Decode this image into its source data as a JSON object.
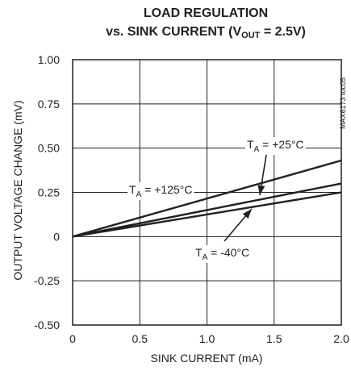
{
  "title": {
    "line1": "LOAD REGULATION",
    "line2_prefix": "vs. SINK CURRENT (V",
    "line2_sub": "OUT",
    "line2_suffix": " = 2.5V)"
  },
  "figure_code": "MAX6173 toc05",
  "chart_data": {
    "type": "line",
    "title": "LOAD REGULATION vs. SINK CURRENT (VOUT = 2.5V)",
    "xlabel": "SINK CURRENT (mA)",
    "ylabel": "OUTPUT VOLTAGE CHANGE (mV)",
    "xlim": [
      0,
      2.0
    ],
    "ylim": [
      -0.5,
      1.0
    ],
    "x_ticks": [
      "0",
      "0.5",
      "1.0",
      "1.5",
      "2.0"
    ],
    "y_ticks": [
      "1.00",
      "0.75",
      "0.50",
      "0.25",
      "0",
      "-0.25",
      "-0.50"
    ],
    "grid": true,
    "series": [
      {
        "name": "TA = +125°C",
        "x": [
          0,
          2.0
        ],
        "y": [
          0,
          0.43
        ]
      },
      {
        "name": "TA = +25°C",
        "x": [
          0,
          2.0
        ],
        "y": [
          0,
          0.3
        ]
      },
      {
        "name": "TA = -40°C",
        "x": [
          0,
          2.0
        ],
        "y": [
          0,
          0.25
        ]
      }
    ],
    "annotations": [
      {
        "prefix": "T",
        "sub": "A",
        "text": " = +125°C",
        "series": 0
      },
      {
        "prefix": "T",
        "sub": "A",
        "text": " = +25°C",
        "series": 1
      },
      {
        "prefix": "T",
        "sub": "A",
        "text": " = -40°C",
        "series": 2
      }
    ]
  }
}
